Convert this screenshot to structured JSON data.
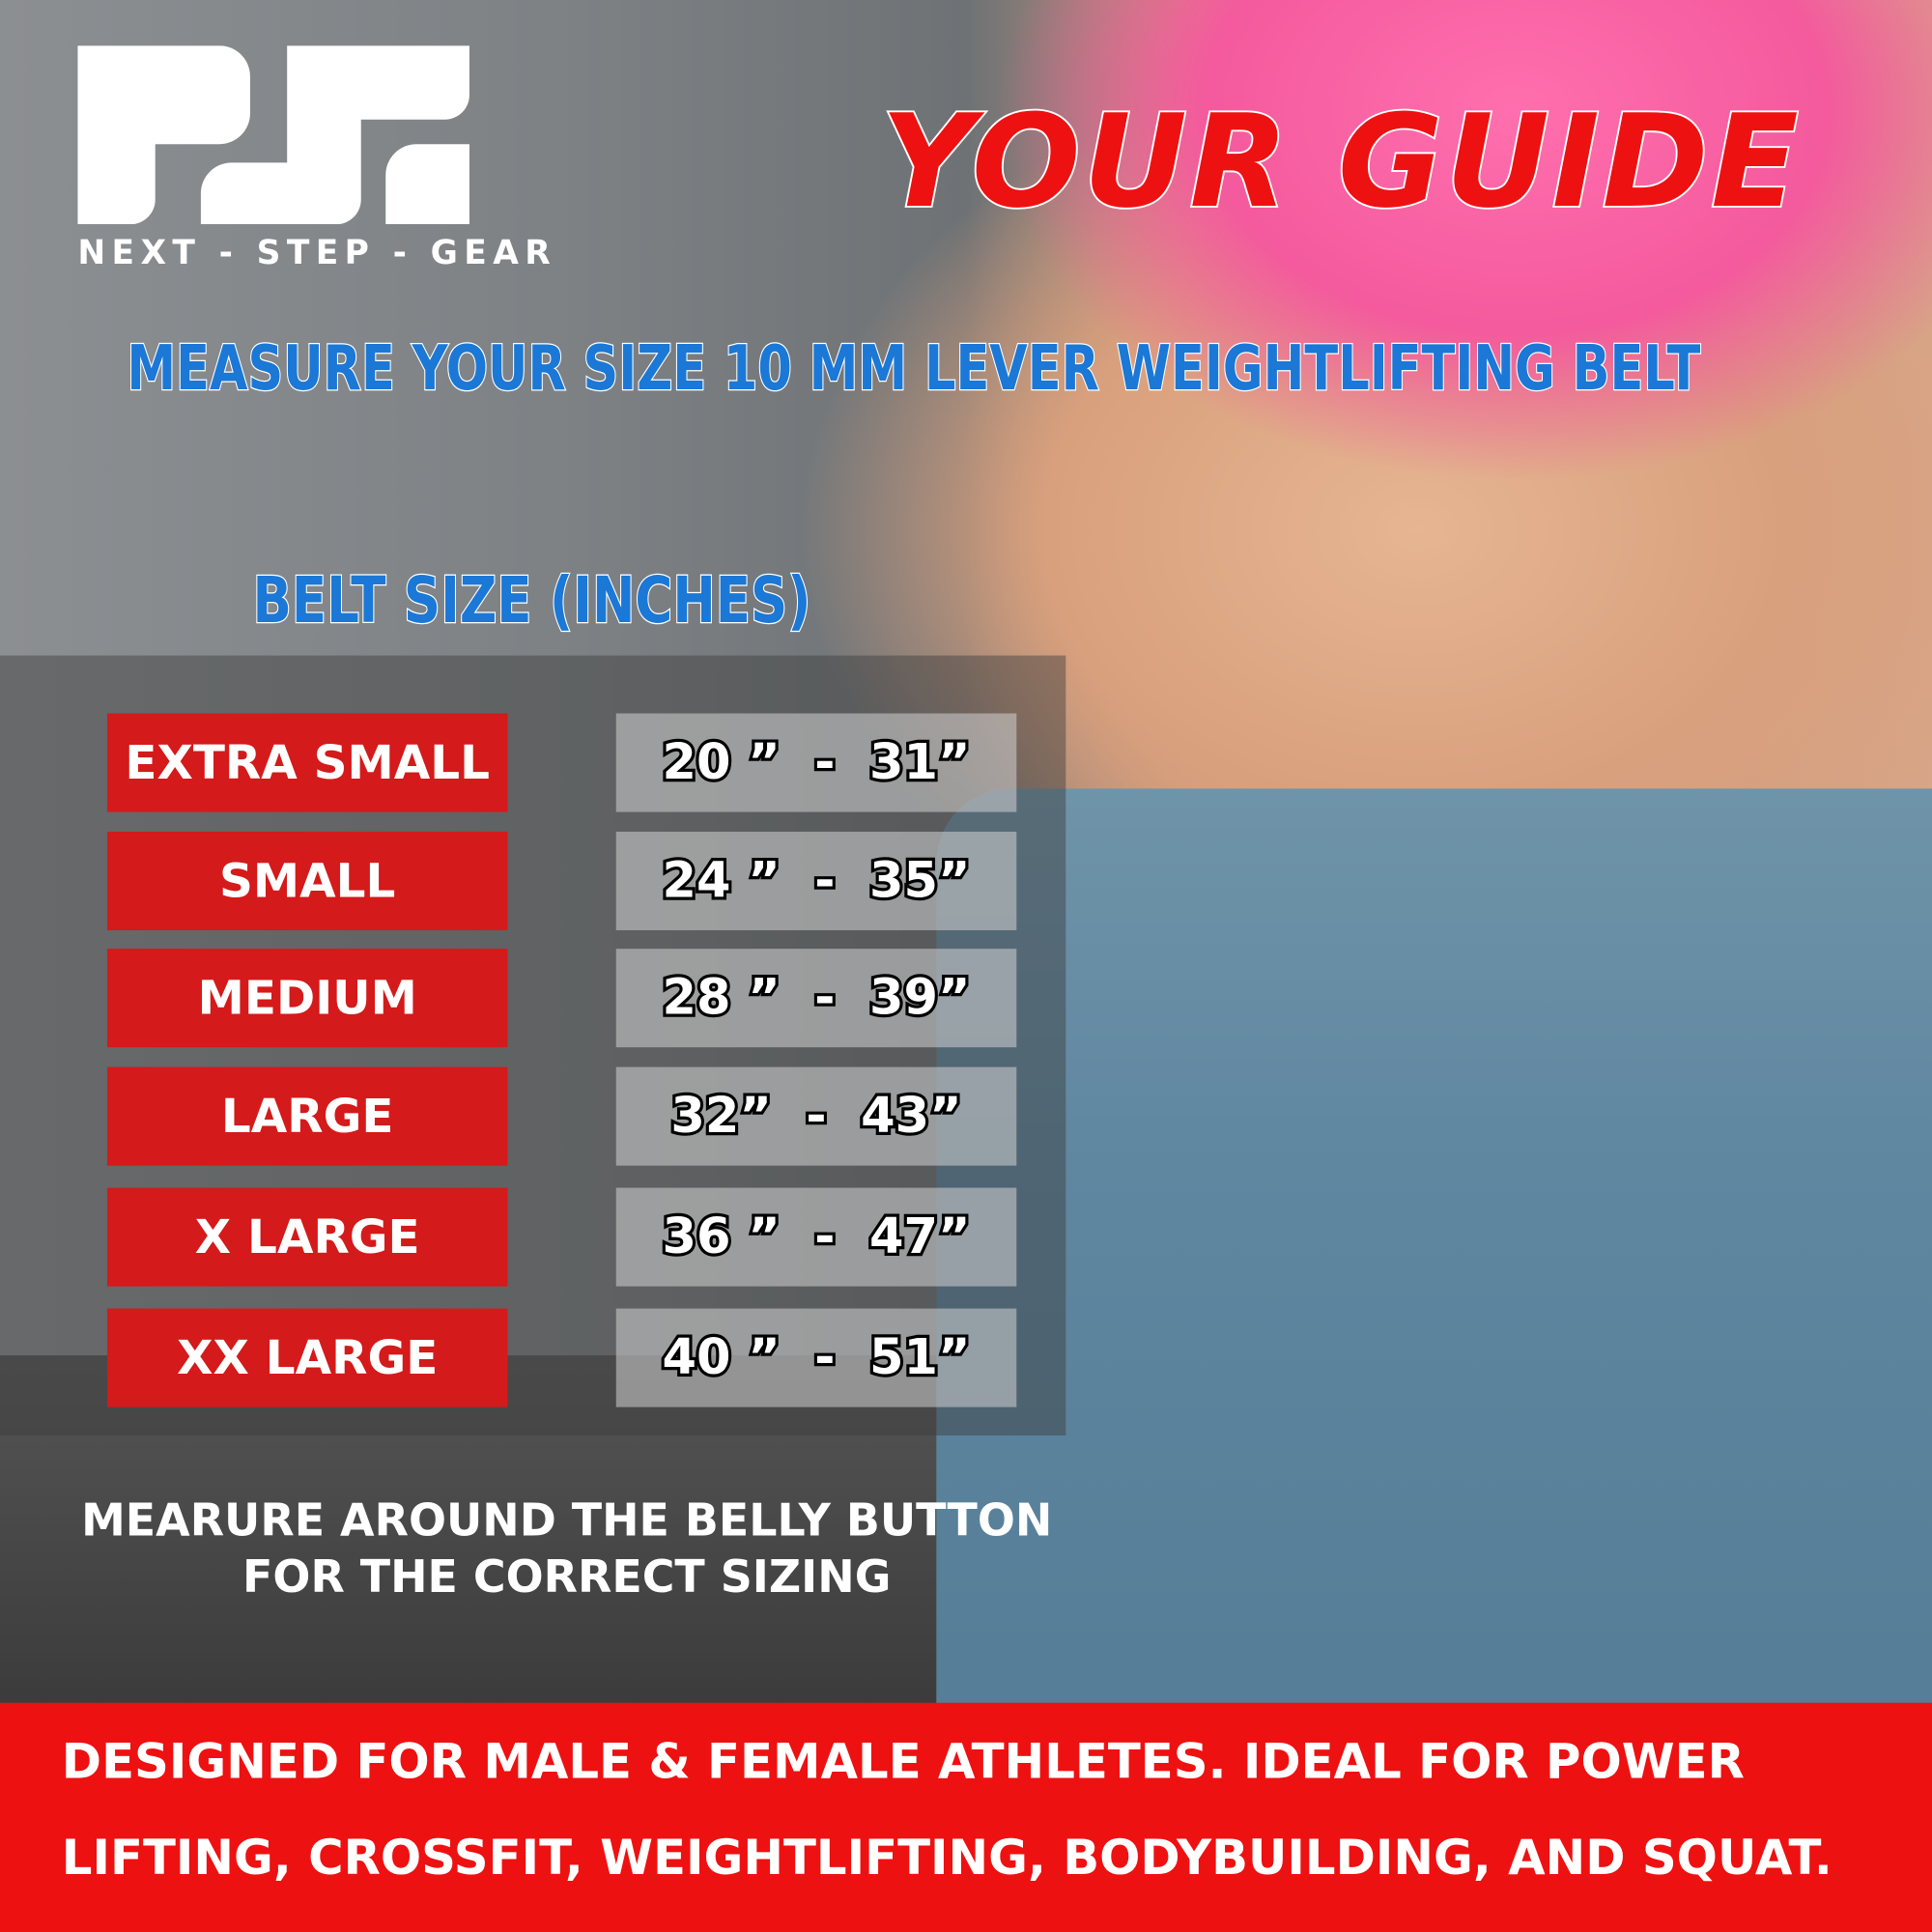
{
  "brand": {
    "logo_letters": "NSG",
    "tagline": "NEXT - STEP - GEAR"
  },
  "title": "YOUR GUIDE",
  "subtitle": "MEASURE YOUR SIZE 10 MM LEVER WEIGHTLIFTING BELT",
  "table": {
    "heading": "BELT SIZE (INCHES)",
    "rows": [
      {
        "size": "EXTRA SMALL",
        "range": "20 ”  -  31”"
      },
      {
        "size": "SMALL",
        "range": "24 ”  -  35”"
      },
      {
        "size": "MEDIUM",
        "range": "28 ”  -  39”"
      },
      {
        "size": "LARGE",
        "range": "32”  -  43”"
      },
      {
        "size": "X LARGE",
        "range": "36 ”  -  47”"
      },
      {
        "size": "XX LARGE",
        "range": "40 ”  -  51”"
      }
    ]
  },
  "note": {
    "line1": "MEARURE AROUND THE BELLY BUTTON",
    "line2": "FOR THE CORRECT SIZING"
  },
  "footer": {
    "line1": "DESIGNED FOR MALE & FEMALE ATHLETES. IDEAL FOR POWER",
    "line2": "LIFTING, CROSSFIT, WEIGHTLIFTING, BODYBUILDING, AND SQUAT."
  },
  "colors": {
    "red": "#ee1111",
    "size_box": "#d41a1a",
    "blue": "#1b78d6"
  }
}
